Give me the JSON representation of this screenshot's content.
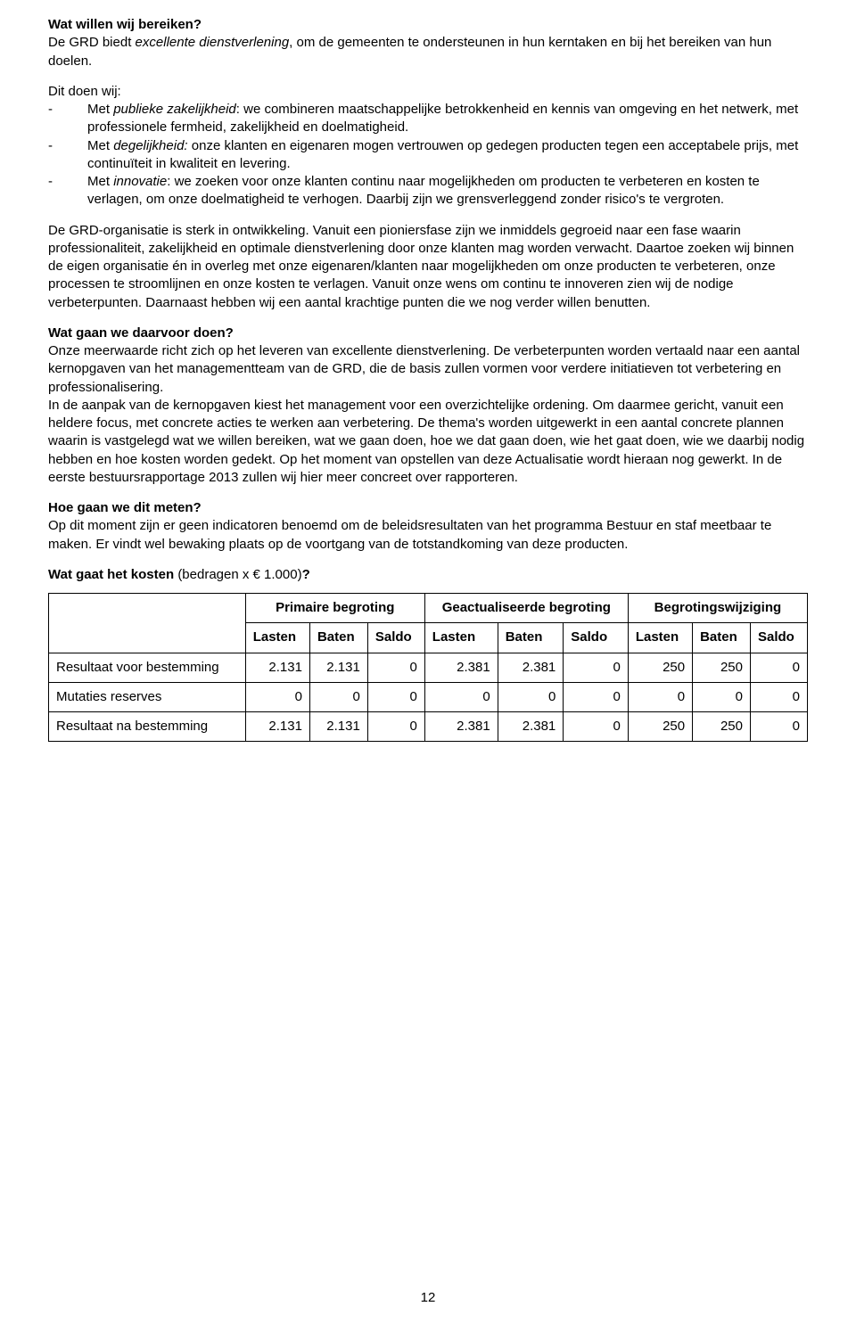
{
  "section1": {
    "heading": "Wat willen wij bereiken?",
    "p1_before": "De GRD biedt ",
    "p1_italic": "excellente dienstverlening",
    "p1_after": ", om de gemeenten te ondersteunen in hun kerntaken en bij het bereiken van hun doelen."
  },
  "section2": {
    "intro": "Dit doen wij:",
    "b1_pre": "Met ",
    "b1_it": "publieke zakelijkheid",
    "b1_post": ": we combineren maatschappelijke betrokkenheid en kennis van omgeving en het netwerk, met professionele fermheid, zakelijkheid en doelmatigheid.",
    "b2_pre": "Met ",
    "b2_it": "degelijkheid:",
    "b2_post": " onze klanten en eigenaren mogen vertrouwen op gedegen producten tegen een acceptabele prijs, met continuïteit in kwaliteit en levering.",
    "b3_pre": "Met ",
    "b3_it": "innovatie",
    "b3_post": ": we zoeken voor onze klanten continu naar mogelijkheden om producten te verbeteren en kosten te verlagen, om onze doelmatigheid te verhogen. Daarbij zijn we grensverleggend zonder risico's te vergroten."
  },
  "para3": "De GRD-organisatie is sterk in ontwikkeling. Vanuit een pioniersfase zijn we inmiddels gegroeid naar een fase waarin professionaliteit, zakelijkheid en optimale dienstverlening door onze klanten mag worden verwacht. Daartoe zoeken wij binnen de eigen organisatie én in overleg met onze eigenaren/klanten naar mogelijkheden om onze producten te verbeteren, onze processen te stroomlijnen en onze kosten te verlagen. Vanuit onze wens om continu te innoveren zien wij de nodige verbeterpunten. Daarnaast hebben wij een aantal krachtige punten die we nog verder willen benutten.",
  "section4": {
    "heading": "Wat gaan we daarvoor doen?",
    "body": "Onze meerwaarde richt zich op het leveren van excellente dienstverlening. De verbeterpunten worden vertaald naar een aantal kernopgaven van het managementteam van de GRD, die de basis zullen vormen voor verdere initiatieven tot verbetering en professionalisering.\nIn de aanpak van de kernopgaven kiest het management voor een overzichtelijke ordening. Om daarmee gericht, vanuit een heldere focus, met concrete acties te werken aan verbetering. De thema's worden uitgewerkt in een aantal concrete plannen waarin is vastgelegd wat we willen bereiken, wat we gaan doen, hoe we dat gaan doen, wie het gaat doen, wie we daarbij nodig hebben en hoe kosten worden gedekt. Op het moment van opstellen van deze Actualisatie wordt hieraan nog gewerkt. In de eerste bestuursrapportage 2013 zullen wij hier meer concreet over rapporteren."
  },
  "section5": {
    "heading": "Hoe gaan we dit meten?",
    "body": "Op dit moment zijn er geen indicatoren benoemd om de beleidsresultaten van het programma Bestuur en staf meetbaar te maken. Er vindt wel bewaking plaats op de voortgang van de totstandkoming van deze producten."
  },
  "costHeading_pre": "Wat gaat het kosten ",
  "costHeading_post": "(bedragen x € 1.000)",
  "costHeading_q": "?",
  "table": {
    "groupHeaders": [
      "Primaire begroting",
      "Geactualiseerde begroting",
      "Begrotingswijziging"
    ],
    "subHeaders": [
      "Lasten",
      "Baten",
      "Saldo",
      "Lasten",
      "Baten",
      "Saldo",
      "Lasten",
      "Baten",
      "Saldo"
    ],
    "rows": [
      {
        "label": "Resultaat voor bestemming",
        "cells": [
          "2.131",
          "2.131",
          "0",
          "2.381",
          "2.381",
          "0",
          "250",
          "250",
          "0"
        ]
      },
      {
        "label": "Mutaties reserves",
        "cells": [
          "0",
          "0",
          "0",
          "0",
          "0",
          "0",
          "0",
          "0",
          "0"
        ]
      },
      {
        "label": "Resultaat na bestemming",
        "cells": [
          "2.131",
          "2.131",
          "0",
          "2.381",
          "2.381",
          "0",
          "250",
          "250",
          "0"
        ]
      }
    ]
  },
  "pageNumber": "12"
}
